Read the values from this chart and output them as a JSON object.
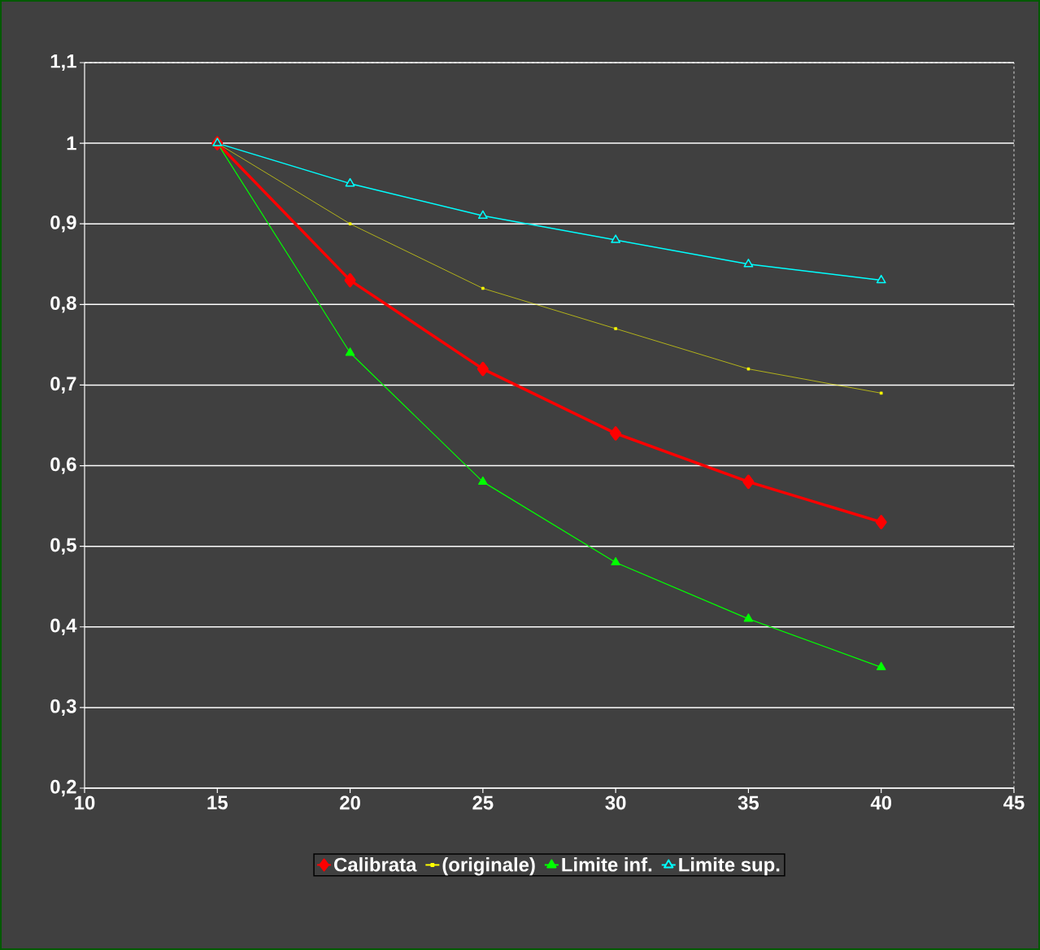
{
  "chart_data": {
    "type": "line",
    "x": [
      15,
      20,
      25,
      30,
      35,
      40
    ],
    "series": [
      {
        "name": "Calibrata",
        "color": "#ff0000",
        "marker": "diamond",
        "values": [
          1.0,
          0.83,
          0.72,
          0.64,
          0.58,
          0.53
        ]
      },
      {
        "name": "(originale)",
        "color": "#ffff00",
        "marker": "square",
        "values": [
          1.0,
          0.9,
          0.82,
          0.77,
          0.72,
          0.69
        ]
      },
      {
        "name": "Limite inf.",
        "color": "#00ff00",
        "marker": "triangle",
        "values": [
          1.0,
          0.74,
          0.58,
          0.48,
          0.41,
          0.35
        ]
      },
      {
        "name": "Limite sup.",
        "color": "#00ffff",
        "marker": "triangle",
        "values": [
          1.0,
          0.95,
          0.91,
          0.88,
          0.85,
          0.83
        ]
      }
    ],
    "xlim": [
      10,
      45
    ],
    "xticks": [
      10,
      15,
      20,
      25,
      30,
      35,
      40,
      45
    ],
    "ylim": [
      0.2,
      1.1
    ],
    "yticks": [
      {
        "value": 0.2,
        "label": "0,2"
      },
      {
        "value": 0.3,
        "label": "0,3"
      },
      {
        "value": 0.4,
        "label": "0,4"
      },
      {
        "value": 0.5,
        "label": "0,5"
      },
      {
        "value": 0.6,
        "label": "0,6"
      },
      {
        "value": 0.7,
        "label": "0,7"
      },
      {
        "value": 0.8,
        "label": "0,8"
      },
      {
        "value": 0.9,
        "label": "0,9"
      },
      {
        "value": 1,
        "label": "1"
      },
      {
        "value": 1.1,
        "label": "1,1"
      }
    ],
    "grid": "y",
    "legend": "bottom"
  }
}
